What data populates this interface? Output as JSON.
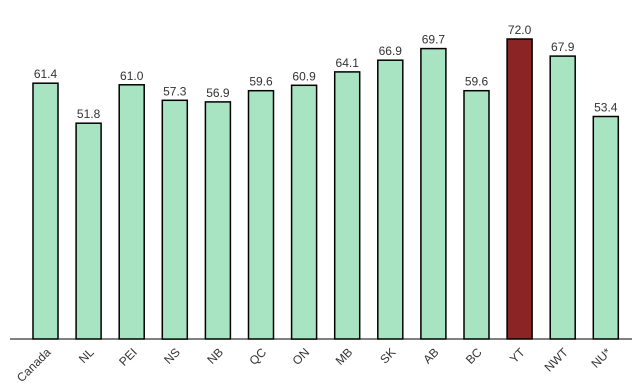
{
  "chart_data": {
    "type": "bar",
    "title": "",
    "xlabel": "",
    "ylabel": "",
    "ylim": [
      0,
      72.0
    ],
    "grid": false,
    "legend": "none",
    "categories": [
      "Canada",
      "NL",
      "PEI",
      "NS",
      "NB",
      "QC",
      "ON",
      "MB",
      "SK",
      "AB",
      "BC",
      "YT",
      "NWT",
      "NU*"
    ],
    "values": [
      61.4,
      51.8,
      61.0,
      57.3,
      56.9,
      59.6,
      60.9,
      64.1,
      66.9,
      69.7,
      59.6,
      72.0,
      67.9,
      53.4
    ],
    "value_labels": [
      "61.4",
      "51.8",
      "61.0",
      "57.3",
      "56.9",
      "59.6",
      "60.9",
      "64.1",
      "66.9",
      "69.7",
      "59.6",
      "72.0",
      "67.9",
      "53.4"
    ],
    "highlight_index": 11,
    "colors": {
      "bar_fill": "#a8e4c2",
      "highlight_fill": "#8b2424",
      "bar_stroke": "#000000"
    }
  }
}
